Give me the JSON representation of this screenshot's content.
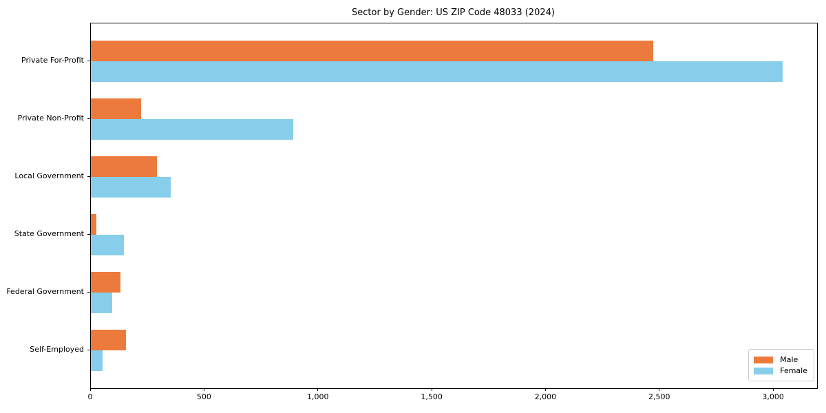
{
  "title": "Sector by Gender: US ZIP Code 48033 (2024)",
  "colors": {
    "male": "#ec7a3c",
    "female": "#87ceeb",
    "axis": "#000000",
    "legend_border": "#cccccc",
    "background": "#ffffff"
  },
  "legend": {
    "position": "lower right",
    "entries": [
      {
        "label": "Male",
        "color": "#ec7a3c"
      },
      {
        "label": "Female",
        "color": "#87ceeb"
      }
    ]
  },
  "chart_data": {
    "type": "bar",
    "orientation": "horizontal",
    "title": "Sector by Gender: US ZIP Code 48033 (2024)",
    "categories": [
      "Private For-Profit",
      "Private Non-Profit",
      "Local Government",
      "State Government",
      "Federal Government",
      "Self-Employed"
    ],
    "series": [
      {
        "name": "Male",
        "color": "#ec7a3c",
        "values": [
          2470,
          220,
          290,
          25,
          130,
          155
        ]
      },
      {
        "name": "Female",
        "color": "#87ceeb",
        "values": [
          3040,
          890,
          350,
          145,
          95,
          50
        ]
      }
    ],
    "xlabel": "",
    "ylabel": "",
    "xlim": [
      0,
      3190
    ],
    "xticks": [
      0,
      500,
      1000,
      1500,
      2000,
      2500,
      3000
    ],
    "xtick_labels": [
      "0",
      "500",
      "1,000",
      "1,500",
      "2,000",
      "2,500",
      "3,000"
    ],
    "grid": false,
    "legend_position": "lower right"
  }
}
